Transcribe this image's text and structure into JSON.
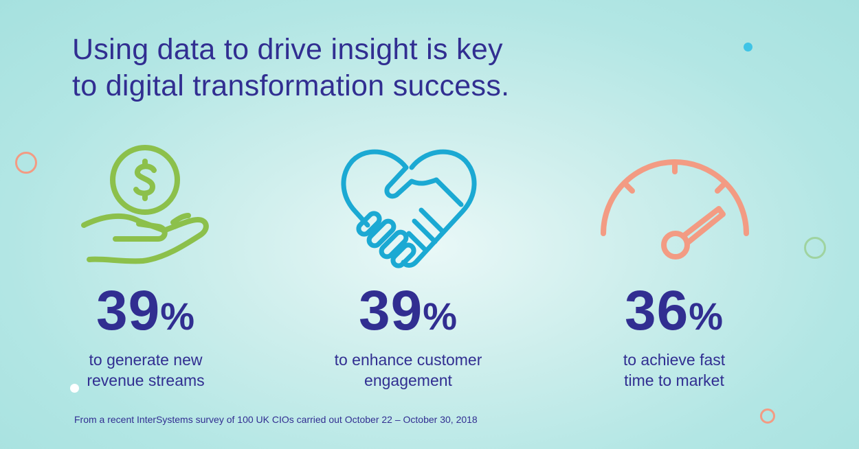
{
  "headline": {
    "line1": "Using data to drive insight is key",
    "line2": "to digital transformation success."
  },
  "stats": [
    {
      "value": "39",
      "unit": "%",
      "label_line1": "to generate new",
      "label_line2": "revenue streams",
      "icon": "hand-coin-icon",
      "color": "#8cc04b"
    },
    {
      "value": "39",
      "unit": "%",
      "label_line1": "to enhance customer",
      "label_line2": "engagement",
      "icon": "heart-handshake-icon",
      "color": "#1ba9d3"
    },
    {
      "value": "36",
      "unit": "%",
      "label_line1": "to achieve fast",
      "label_line2": "time to market",
      "icon": "speedometer-icon",
      "color": "#f39b83"
    }
  ],
  "footnote": "From a recent InterSystems survey of 100 UK CIOs carried out October 22 – October 30, 2018",
  "colors": {
    "text": "#312e91",
    "background": "#b2e6e4"
  }
}
